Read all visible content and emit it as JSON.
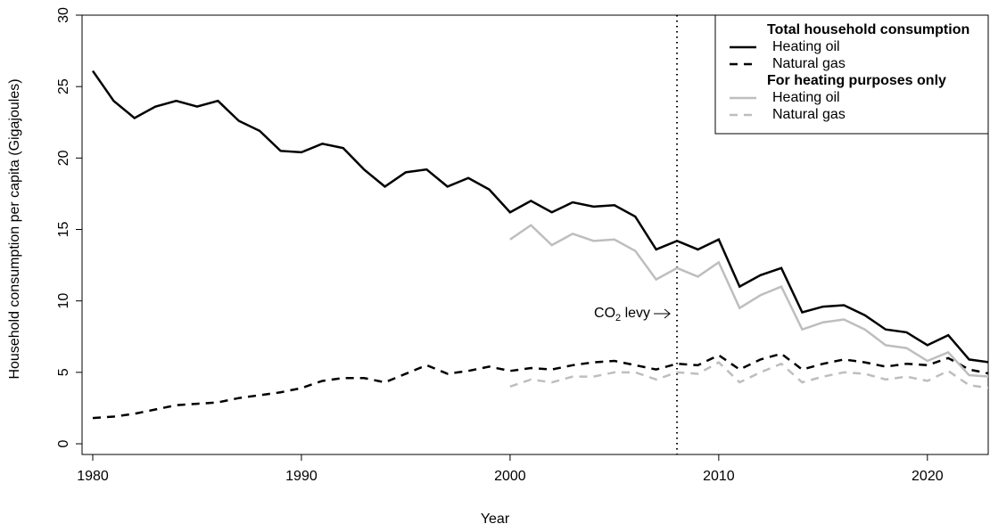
{
  "chart_data": {
    "type": "line",
    "x_label": "Year",
    "y_label": "Household consumption per capita (Gigajoules)",
    "x": [
      1980,
      1981,
      1982,
      1983,
      1984,
      1985,
      1986,
      1987,
      1988,
      1989,
      1990,
      1991,
      1992,
      1993,
      1994,
      1995,
      1996,
      1997,
      1998,
      1999,
      2000,
      2001,
      2002,
      2003,
      2004,
      2005,
      2006,
      2007,
      2008,
      2009,
      2010,
      2011,
      2012,
      2013,
      2014,
      2015,
      2016,
      2017,
      2018,
      2019,
      2020,
      2021,
      2022,
      2023
    ],
    "xlim": [
      1980,
      2023
    ],
    "xticks": [
      1980,
      1990,
      2000,
      2010,
      2020
    ],
    "ylim": [
      0,
      30
    ],
    "yticks": [
      0,
      5,
      10,
      15,
      20,
      25,
      30
    ],
    "legend_position": "top-right",
    "legend_groups": [
      "Total household consumption",
      "For heating purposes only"
    ],
    "series": [
      {
        "name": "Heating oil",
        "group": 0,
        "color": "#000000",
        "dash": "solid",
        "values": [
          26.1,
          24.0,
          22.8,
          23.6,
          24.0,
          23.6,
          24.0,
          22.6,
          21.9,
          20.5,
          20.4,
          21.0,
          20.7,
          19.2,
          18.0,
          19.0,
          19.2,
          18.0,
          18.6,
          17.8,
          16.2,
          17.0,
          16.2,
          16.9,
          16.6,
          16.7,
          15.9,
          13.6,
          14.2,
          13.6,
          14.3,
          11.0,
          11.8,
          12.3,
          9.2,
          9.6,
          9.7,
          9.0,
          8.0,
          7.8,
          6.9,
          7.6,
          5.9,
          5.7
        ]
      },
      {
        "name": "Natural gas",
        "group": 0,
        "color": "#000000",
        "dash": "dashed",
        "values": [
          1.8,
          1.9,
          2.1,
          2.4,
          2.7,
          2.8,
          2.9,
          3.2,
          3.4,
          3.6,
          3.9,
          4.4,
          4.6,
          4.6,
          4.3,
          4.9,
          5.5,
          4.9,
          5.1,
          5.4,
          5.1,
          5.3,
          5.2,
          5.5,
          5.7,
          5.8,
          5.5,
          5.2,
          5.6,
          5.5,
          6.2,
          5.2,
          5.9,
          6.3,
          5.2,
          5.6,
          5.9,
          5.7,
          5.4,
          5.6,
          5.5,
          6.0,
          5.2,
          4.9
        ]
      },
      {
        "name": "Heating oil",
        "group": 1,
        "color": "#bebebe",
        "dash": "solid",
        "values": [
          null,
          null,
          null,
          null,
          null,
          null,
          null,
          null,
          null,
          null,
          null,
          null,
          null,
          null,
          null,
          null,
          null,
          null,
          null,
          null,
          14.3,
          15.3,
          13.9,
          14.7,
          14.2,
          14.3,
          13.5,
          11.5,
          12.3,
          11.7,
          12.7,
          9.5,
          10.4,
          11.0,
          8.0,
          8.5,
          8.7,
          8.0,
          6.9,
          6.7,
          5.8,
          6.4,
          4.8,
          4.7
        ]
      },
      {
        "name": "Natural gas",
        "group": 1,
        "color": "#bebebe",
        "dash": "dashed",
        "values": [
          null,
          null,
          null,
          null,
          null,
          null,
          null,
          null,
          null,
          null,
          null,
          null,
          null,
          null,
          null,
          null,
          null,
          null,
          null,
          null,
          4.0,
          4.5,
          4.3,
          4.7,
          4.7,
          5.0,
          5.0,
          4.5,
          5.0,
          4.9,
          5.7,
          4.3,
          5.0,
          5.6,
          4.3,
          4.7,
          5.0,
          4.9,
          4.5,
          4.7,
          4.4,
          5.1,
          4.1,
          3.9
        ]
      }
    ],
    "annotation": {
      "text": "CO₂ levy",
      "x": 2008
    }
  }
}
